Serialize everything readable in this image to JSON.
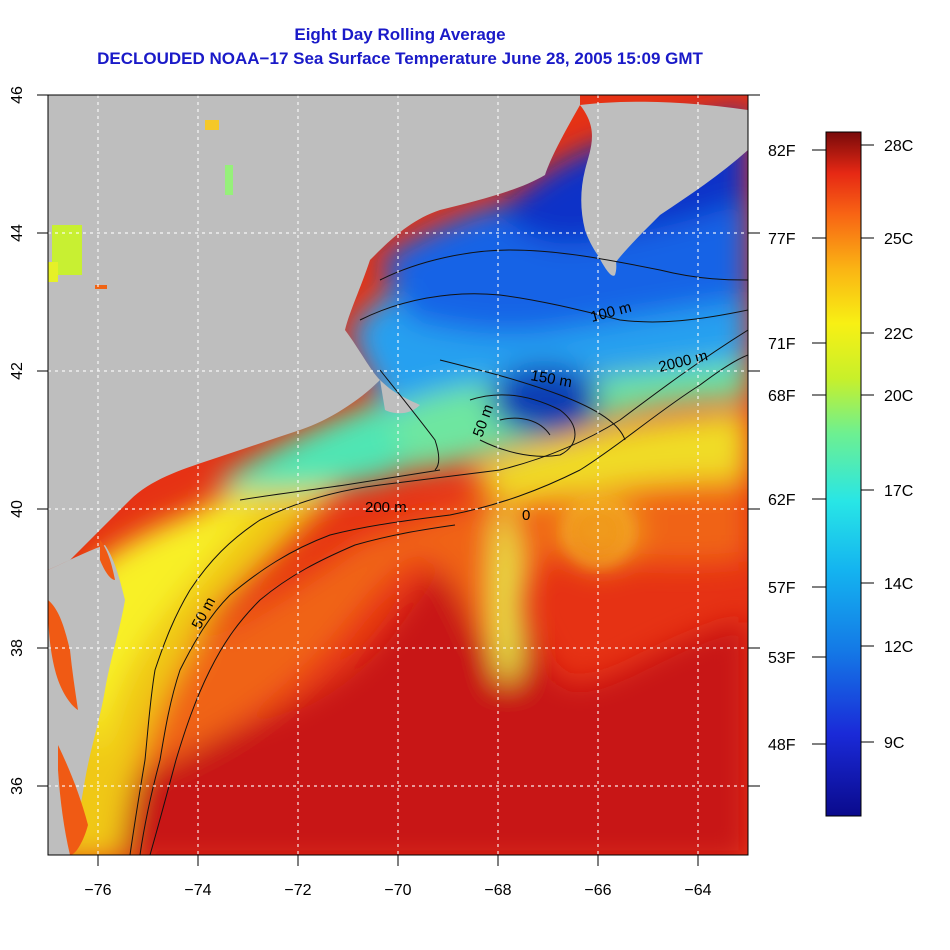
{
  "title": "Eight Day Rolling Average",
  "subtitle": "DECLOUDED NOAA−17 Sea Surface Temperature June 28, 2005 15:09 GMT",
  "x_ticks": [
    "−76",
    "−74",
    "−72",
    "−70",
    "−68",
    "−66",
    "−64"
  ],
  "y_ticks": [
    "36",
    "38",
    "40",
    "42",
    "44",
    "46"
  ],
  "depth_labels": [
    "50 m",
    "200 m",
    "2000 m",
    "100 m",
    "50 m",
    "150 m",
    "0"
  ],
  "colorbar": {
    "celsius_labels": [
      "28C",
      "25C",
      "22C",
      "20C",
      "17C",
      "14C",
      "12C",
      "9C"
    ],
    "fahrenheit_labels": [
      "82F",
      "77F",
      "71F",
      "68F",
      "62F",
      "57F",
      "53F",
      "48F"
    ]
  },
  "colors": {
    "title": "#1a1ac8",
    "land": "#bebebe",
    "warm": "#c81414",
    "cold": "#1432c8"
  },
  "chart_data": {
    "type": "heatmap",
    "title": "Eight Day Rolling Average",
    "subtitle": "DECLOUDED NOAA−17 Sea Surface Temperature June 28, 2005 15:09 GMT",
    "x_ticks": [
      -76,
      -74,
      -72,
      -70,
      -68,
      -66,
      -64
    ],
    "y_ticks": [
      36,
      38,
      40,
      42,
      44,
      46
    ],
    "xlim": [
      -77,
      -63
    ],
    "ylim": [
      35,
      46
    ],
    "grid": true,
    "colorbar_celsius": [
      28,
      25,
      22,
      20,
      17,
      14,
      12,
      9
    ],
    "colorbar_fahrenheit": [
      82,
      77,
      71,
      68,
      62,
      57,
      53,
      48
    ]
  }
}
